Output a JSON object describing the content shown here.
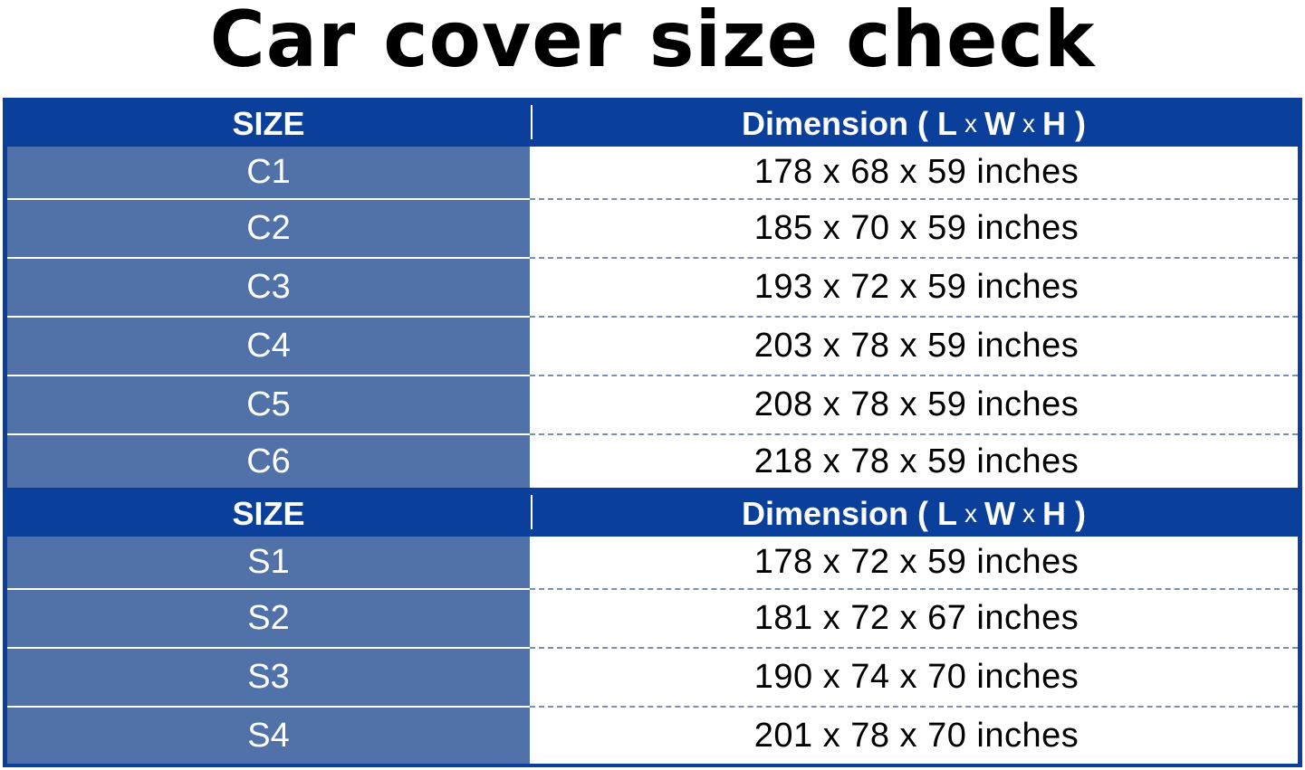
{
  "title": "Car cover size check",
  "colors": {
    "header": "#0a3f9c",
    "size_cell": "#5072a8",
    "text_header": "#ffffff"
  },
  "sections": [
    {
      "header": {
        "size": "SIZE",
        "dimension": "Dimension (",
        "L": "L",
        "x1": "x",
        "W": "W",
        "x2": "x",
        "H": "H )"
      },
      "rows": [
        {
          "size": "C1",
          "dimension": "178 x 68 x 59 inches"
        },
        {
          "size": "C2",
          "dimension": "185 x 70 x 59 inches"
        },
        {
          "size": "C3",
          "dimension": "193 x 72 x 59 inches"
        },
        {
          "size": "C4",
          "dimension": "203 x 78 x 59 inches"
        },
        {
          "size": "C5",
          "dimension": "208 x 78 x 59 inches"
        },
        {
          "size": "C6",
          "dimension": "218 x 78 x 59 inches"
        }
      ]
    },
    {
      "header": {
        "size": "SIZE",
        "dimension": "Dimension (",
        "L": "L",
        "x1": "x",
        "W": "W",
        "x2": "x",
        "H": "H )"
      },
      "rows": [
        {
          "size": "S1",
          "dimension": "178 x 72 x 59 inches"
        },
        {
          "size": "S2",
          "dimension": "181 x 72 x 67 inches"
        },
        {
          "size": "S3",
          "dimension": "190 x 74 x 70 inches"
        },
        {
          "size": "S4",
          "dimension": "201 x 78 x 70 inches"
        }
      ]
    }
  ]
}
